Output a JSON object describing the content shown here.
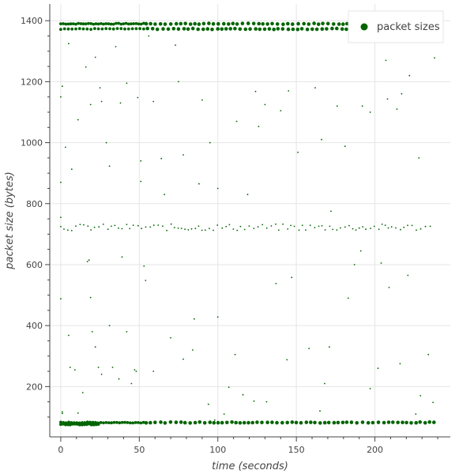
{
  "chart_data": {
    "type": "scatter",
    "title": "",
    "xlabel": "time (seconds)",
    "ylabel": "packet size (bytes)",
    "xlim": [
      -7,
      248
    ],
    "ylim": [
      35,
      1455
    ],
    "x_ticks": [
      0,
      50,
      100,
      150,
      200
    ],
    "y_ticks": [
      200,
      400,
      600,
      800,
      1000,
      1200,
      1400
    ],
    "grid": true,
    "legend": {
      "placement": "top-right",
      "label": "packet sizes"
    },
    "series": [
      {
        "name": "packet sizes",
        "color": "#006400",
        "bands": [
          {
            "y": 1390,
            "x_start": 0,
            "x_end": 238,
            "dense_until": 54,
            "step": 1.6
          },
          {
            "y": 1373,
            "x_start": 0,
            "x_end": 238,
            "dense_until": 54,
            "step": 2.4
          },
          {
            "y": 82,
            "x_start": 0,
            "x_end": 238,
            "dense_until": 54,
            "step": 1.7
          },
          {
            "y": 76,
            "x_start": 0,
            "x_end": 24,
            "dense_until": 24,
            "step": 1.5
          }
        ],
        "mid_band": {
          "y": 722,
          "x_start": 0,
          "x_end": 238,
          "step": 1.9
        },
        "points": [
          [
            0,
            1150
          ],
          [
            1,
            1185
          ],
          [
            3,
            985
          ],
          [
            5,
            1325
          ],
          [
            7,
            913
          ],
          [
            11,
            1075
          ],
          [
            16,
            1248
          ],
          [
            19,
            1125
          ],
          [
            22,
            1280
          ],
          [
            25,
            1180
          ],
          [
            26,
            1135
          ],
          [
            29,
            1000
          ],
          [
            31,
            923
          ],
          [
            35,
            1315
          ],
          [
            38,
            1130
          ],
          [
            42,
            1195
          ],
          [
            49,
            1148
          ],
          [
            51,
            940
          ],
          [
            56,
            1350
          ],
          [
            59,
            1135
          ],
          [
            64,
            948
          ],
          [
            66,
            830
          ],
          [
            73,
            1320
          ],
          [
            75,
            1200
          ],
          [
            78,
            960
          ],
          [
            88,
            865
          ],
          [
            90,
            1140
          ],
          [
            95,
            1000
          ],
          [
            100,
            850
          ],
          [
            112,
            1070
          ],
          [
            119,
            830
          ],
          [
            124,
            1168
          ],
          [
            126,
            1053
          ],
          [
            130,
            1125
          ],
          [
            140,
            1105
          ],
          [
            145,
            1170
          ],
          [
            151,
            968
          ],
          [
            160,
            1375
          ],
          [
            162,
            1180
          ],
          [
            166,
            1010
          ],
          [
            176,
            1120
          ],
          [
            181,
            988
          ],
          [
            192,
            1120
          ],
          [
            197,
            1100
          ],
          [
            207,
            1270
          ],
          [
            208,
            1143
          ],
          [
            214,
            1110
          ],
          [
            217,
            1160
          ],
          [
            222,
            1220
          ],
          [
            228,
            950
          ],
          [
            238,
            1278
          ],
          [
            0,
            870
          ],
          [
            0,
            755
          ],
          [
            0,
            488
          ],
          [
            1,
            117
          ],
          [
            1,
            112
          ],
          [
            5,
            368
          ],
          [
            6,
            263
          ],
          [
            9,
            255
          ],
          [
            11,
            113
          ],
          [
            14,
            180
          ],
          [
            17,
            610
          ],
          [
            18,
            615
          ],
          [
            19,
            492
          ],
          [
            20,
            380
          ],
          [
            22,
            330
          ],
          [
            24,
            263
          ],
          [
            26,
            240
          ],
          [
            31,
            400
          ],
          [
            33,
            263
          ],
          [
            37,
            225
          ],
          [
            39,
            625
          ],
          [
            42,
            380
          ],
          [
            45,
            210
          ],
          [
            47,
            255
          ],
          [
            48,
            250
          ],
          [
            51,
            873
          ],
          [
            53,
            595
          ],
          [
            54,
            548
          ],
          [
            59,
            250
          ],
          [
            70,
            360
          ],
          [
            78,
            290
          ],
          [
            84,
            320
          ],
          [
            85,
            422
          ],
          [
            94,
            142
          ],
          [
            98,
            90
          ],
          [
            100,
            428
          ],
          [
            104,
            110
          ],
          [
            107,
            198
          ],
          [
            111,
            305
          ],
          [
            116,
            173
          ],
          [
            123,
            152
          ],
          [
            131,
            150
          ],
          [
            137,
            538
          ],
          [
            144,
            288
          ],
          [
            147,
            558
          ],
          [
            158,
            325
          ],
          [
            165,
            120
          ],
          [
            168,
            210
          ],
          [
            171,
            330
          ],
          [
            172,
            775
          ],
          [
            183,
            490
          ],
          [
            187,
            600
          ],
          [
            191,
            645
          ],
          [
            197,
            193
          ],
          [
            202,
            260
          ],
          [
            204,
            605
          ],
          [
            209,
            525
          ],
          [
            216,
            275
          ],
          [
            221,
            565
          ],
          [
            226,
            110
          ],
          [
            229,
            170
          ],
          [
            234,
            305
          ],
          [
            237,
            148
          ]
        ]
      }
    ]
  }
}
